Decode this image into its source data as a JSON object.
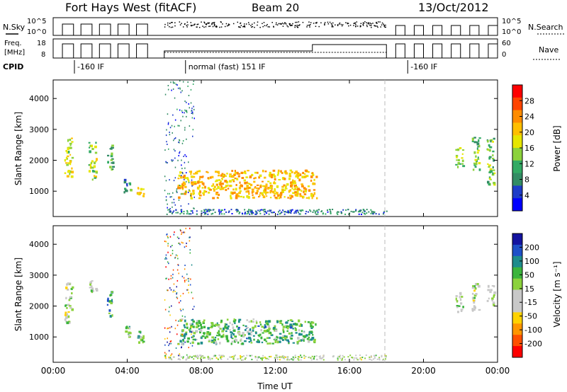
{
  "header": {
    "title": "Fort Hays West (fitACF)",
    "beam": "Beam 20",
    "date": "13/Oct/2012"
  },
  "status_panels": {
    "nsky_label": "N.Sky",
    "nsky_ticks": [
      "10^5",
      "10^0"
    ],
    "nsearch_label": "N.Search",
    "nsearch_ticks": [
      "10^5",
      "10^0"
    ],
    "freq_label_line1": "Freq.",
    "freq_label_line2": "[MHz]",
    "freq_ticks": [
      "18",
      "8"
    ],
    "nave_label": "Nave",
    "nave_ticks": [
      "60",
      "0"
    ],
    "cpid_label": "CPID",
    "cpid_segments": [
      {
        "label": "-160 IF",
        "start_hour": 0.0,
        "end_hour": 6.0
      },
      {
        "label": "normal (fast) 151 IF",
        "start_hour": 6.0,
        "end_hour": 18.0
      },
      {
        "label": "-160 IF",
        "start_hour": 18.0,
        "end_hour": 24.0
      }
    ]
  },
  "colorbars": {
    "power": {
      "label": "Power [dB]",
      "ticks": [
        "28",
        "24",
        "20",
        "16",
        "12",
        "8",
        "4"
      ],
      "colors": [
        "#ff0000",
        "#ff4400",
        "#ff8c00",
        "#ffbf00",
        "#e6e600",
        "#8cd23c",
        "#32aa64",
        "#328c64",
        "#1e3cc8",
        "#0000ff"
      ]
    },
    "velocity": {
      "label": "Velocity [m s⁻¹]",
      "ticks": [
        "200",
        "100",
        "50",
        "15",
        "-15",
        "-50",
        "-100",
        "-200"
      ],
      "colors": [
        "#1414a0",
        "#1e50c8",
        "#1e8c8c",
        "#3cb43c",
        "#8cd23c",
        "#c8c8c8",
        "#c8c8c8",
        "#ffd200",
        "#ff9600",
        "#ff5000",
        "#ff0000"
      ]
    }
  },
  "chart_data": [
    {
      "type": "heatmap",
      "title": "Power",
      "xlabel": "Time UT",
      "ylabel": "Slant Range [km]",
      "xlim": [
        0,
        24
      ],
      "ylim": [
        180,
        4600
      ],
      "xticks": [
        "00:00",
        "04:00",
        "08:00",
        "12:00",
        "16:00",
        "20:00",
        "00:00"
      ],
      "yticks": [
        "1000",
        "2000",
        "3000",
        "4000"
      ],
      "regions": [
        {
          "t0": 0.6,
          "t1": 1.0,
          "r0": 1500,
          "r1": 2900,
          "value": 16
        },
        {
          "t0": 1.9,
          "t1": 2.3,
          "r0": 1400,
          "r1": 2600,
          "value": 14
        },
        {
          "t0": 2.9,
          "t1": 3.2,
          "r0": 1700,
          "r1": 2600,
          "value": 10
        },
        {
          "t0": 3.8,
          "t1": 4.2,
          "r0": 1000,
          "r1": 1400,
          "value": 8
        },
        {
          "t0": 4.5,
          "t1": 4.9,
          "r0": 800,
          "r1": 1200,
          "value": 20
        },
        {
          "t0": 6.7,
          "t1": 14.2,
          "r0": 800,
          "r1": 1700,
          "value": 20
        },
        {
          "t0": 21.7,
          "t1": 22.1,
          "r0": 1800,
          "r1": 2500,
          "value": 14
        },
        {
          "t0": 22.6,
          "t1": 23.0,
          "r0": 1700,
          "r1": 2800,
          "value": 12
        },
        {
          "t0": 23.4,
          "t1": 23.8,
          "r0": 1200,
          "r1": 2800,
          "value": 12
        }
      ]
    },
    {
      "type": "heatmap",
      "title": "Velocity",
      "xlabel": "Time UT",
      "ylabel": "Slant Range [km]",
      "xlim": [
        0,
        24
      ],
      "ylim": [
        180,
        4600
      ],
      "xticks": [
        "00:00",
        "04:00",
        "08:00",
        "12:00",
        "16:00",
        "20:00",
        "00:00"
      ],
      "yticks": [
        "1000",
        "2000",
        "3000",
        "4000"
      ],
      "regions": [
        {
          "t0": 0.6,
          "t1": 1.0,
          "r0": 1500,
          "r1": 2800,
          "value": 0
        },
        {
          "t0": 1.9,
          "t1": 2.3,
          "r0": 2500,
          "r1": 2900,
          "value": 20
        },
        {
          "t0": 2.9,
          "t1": 3.2,
          "r0": 1700,
          "r1": 2500,
          "value": 120
        },
        {
          "t0": 3.8,
          "t1": 4.2,
          "r0": 1000,
          "r1": 1400,
          "value": 60
        },
        {
          "t0": 4.5,
          "t1": 4.9,
          "r0": 800,
          "r1": 1300,
          "value": 60
        },
        {
          "t0": 6.7,
          "t1": 14.2,
          "r0": 800,
          "r1": 1600,
          "value": 80
        },
        {
          "t0": 21.7,
          "t1": 22.1,
          "r0": 1800,
          "r1": 2500,
          "value": 0
        },
        {
          "t0": 22.6,
          "t1": 23.0,
          "r0": 1900,
          "r1": 2800,
          "value": 0
        },
        {
          "t0": 23.4,
          "t1": 23.8,
          "r0": 2000,
          "r1": 2700,
          "value": 0
        }
      ]
    }
  ]
}
